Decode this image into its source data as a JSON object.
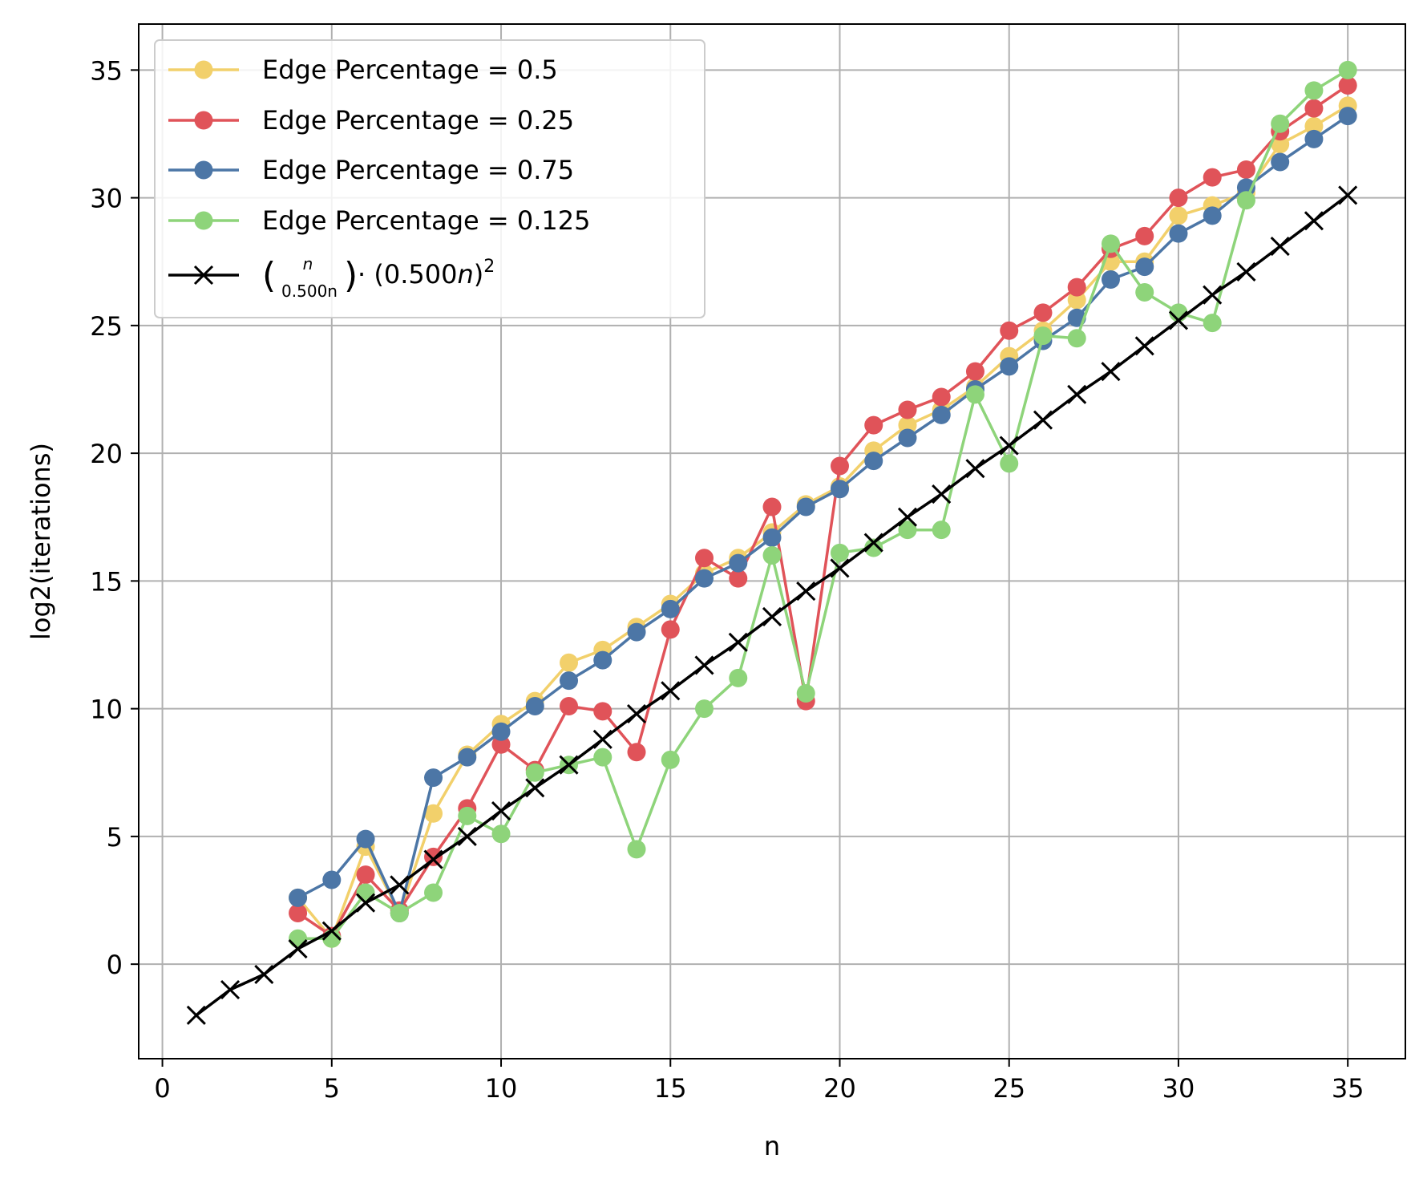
{
  "chart_data": {
    "type": "line",
    "xlabel": "n",
    "ylabel": "log2(iterations)",
    "xlim": [
      -0.7,
      36.7
    ],
    "ylim": [
      -3.7,
      36.8
    ],
    "xticks": [
      0,
      5,
      10,
      15,
      20,
      25,
      30,
      35
    ],
    "yticks": [
      0,
      5,
      10,
      15,
      20,
      25,
      30,
      35
    ],
    "grid": true,
    "legend_position": "top-left",
    "series": [
      {
        "name": "Edge Percentage = 0.5",
        "color": "#f2d06b",
        "marker": "circle",
        "x": [
          4,
          5,
          6,
          7,
          8,
          9,
          10,
          11,
          12,
          13,
          14,
          15,
          16,
          17,
          18,
          19,
          20,
          21,
          22,
          23,
          24,
          25,
          26,
          27,
          28,
          29,
          30,
          31,
          32,
          33,
          34,
          35
        ],
        "y": [
          2.6,
          1.0,
          4.6,
          2.0,
          5.9,
          8.2,
          9.4,
          10.3,
          11.8,
          12.3,
          13.2,
          14.1,
          15.3,
          15.9,
          16.9,
          18.0,
          18.7,
          20.1,
          21.1,
          21.7,
          22.6,
          23.8,
          24.8,
          26.0,
          27.5,
          27.5,
          29.3,
          29.7,
          30.2,
          32.1,
          32.8,
          33.6
        ]
      },
      {
        "name": "Edge Percentage = 0.25",
        "color": "#e05359",
        "marker": "circle",
        "x": [
          4,
          5,
          6,
          7,
          8,
          9,
          10,
          11,
          12,
          13,
          14,
          15,
          16,
          17,
          18,
          19,
          20,
          21,
          22,
          23,
          24,
          25,
          26,
          27,
          28,
          29,
          30,
          31,
          32,
          33,
          34,
          35
        ],
        "y": [
          2.0,
          1.1,
          3.5,
          2.1,
          4.2,
          6.1,
          8.6,
          7.6,
          10.1,
          9.9,
          8.3,
          13.1,
          15.9,
          15.1,
          17.9,
          10.3,
          19.5,
          21.1,
          21.7,
          22.2,
          23.2,
          24.8,
          25.5,
          26.5,
          28.0,
          28.5,
          30.0,
          30.8,
          31.1,
          32.6,
          33.5,
          34.4
        ]
      },
      {
        "name": "Edge Percentage = 0.75",
        "color": "#4c76a6",
        "marker": "circle",
        "x": [
          4,
          5,
          6,
          7,
          8,
          9,
          10,
          11,
          12,
          13,
          14,
          15,
          16,
          17,
          18,
          19,
          20,
          21,
          22,
          23,
          24,
          25,
          26,
          27,
          28,
          29,
          30,
          31,
          32,
          33,
          34,
          35
        ],
        "y": [
          2.6,
          3.3,
          4.9,
          2.0,
          7.3,
          8.1,
          9.1,
          10.1,
          11.1,
          11.9,
          13.0,
          13.9,
          15.1,
          15.7,
          16.7,
          17.9,
          18.6,
          19.7,
          20.6,
          21.5,
          22.5,
          23.4,
          24.4,
          25.3,
          26.8,
          27.3,
          28.6,
          29.3,
          30.4,
          31.4,
          32.3,
          33.2
        ]
      },
      {
        "name": "Edge Percentage = 0.125",
        "color": "#8ed47a",
        "marker": "circle",
        "x": [
          4,
          5,
          6,
          7,
          8,
          9,
          10,
          11,
          12,
          13,
          14,
          15,
          16,
          17,
          18,
          19,
          20,
          21,
          22,
          23,
          24,
          25,
          26,
          27,
          28,
          29,
          30,
          31,
          32,
          33,
          34,
          35
        ],
        "y": [
          1.0,
          1.0,
          2.8,
          2.0,
          2.8,
          5.8,
          5.1,
          7.5,
          7.8,
          8.1,
          4.5,
          8.0,
          10.0,
          11.2,
          16.0,
          10.6,
          16.1,
          16.3,
          17.0,
          17.0,
          22.3,
          19.6,
          24.6,
          24.5,
          28.2,
          26.3,
          25.5,
          25.1,
          29.9,
          32.9,
          34.2,
          35.0
        ]
      },
      {
        "name_parts": [
          "(",
          "n",
          "0.500n",
          ") · (0.500",
          "n",
          ")",
          "2"
        ],
        "color": "#000000",
        "marker": "x",
        "x": [
          1,
          2,
          3,
          4,
          5,
          6,
          7,
          8,
          9,
          10,
          11,
          12,
          13,
          14,
          15,
          16,
          17,
          18,
          19,
          20,
          21,
          22,
          23,
          24,
          25,
          26,
          27,
          28,
          29,
          30,
          31,
          32,
          33,
          34,
          35
        ],
        "y": [
          -2.0,
          -1.0,
          -0.4,
          0.6,
          1.3,
          2.4,
          3.1,
          4.1,
          5.0,
          6.0,
          6.9,
          7.8,
          8.8,
          9.8,
          10.7,
          11.7,
          12.6,
          13.6,
          14.6,
          15.5,
          16.5,
          17.5,
          18.4,
          19.4,
          20.3,
          21.3,
          22.3,
          23.2,
          24.2,
          25.2,
          26.2,
          27.1,
          28.1,
          29.1,
          30.1
        ]
      }
    ]
  }
}
